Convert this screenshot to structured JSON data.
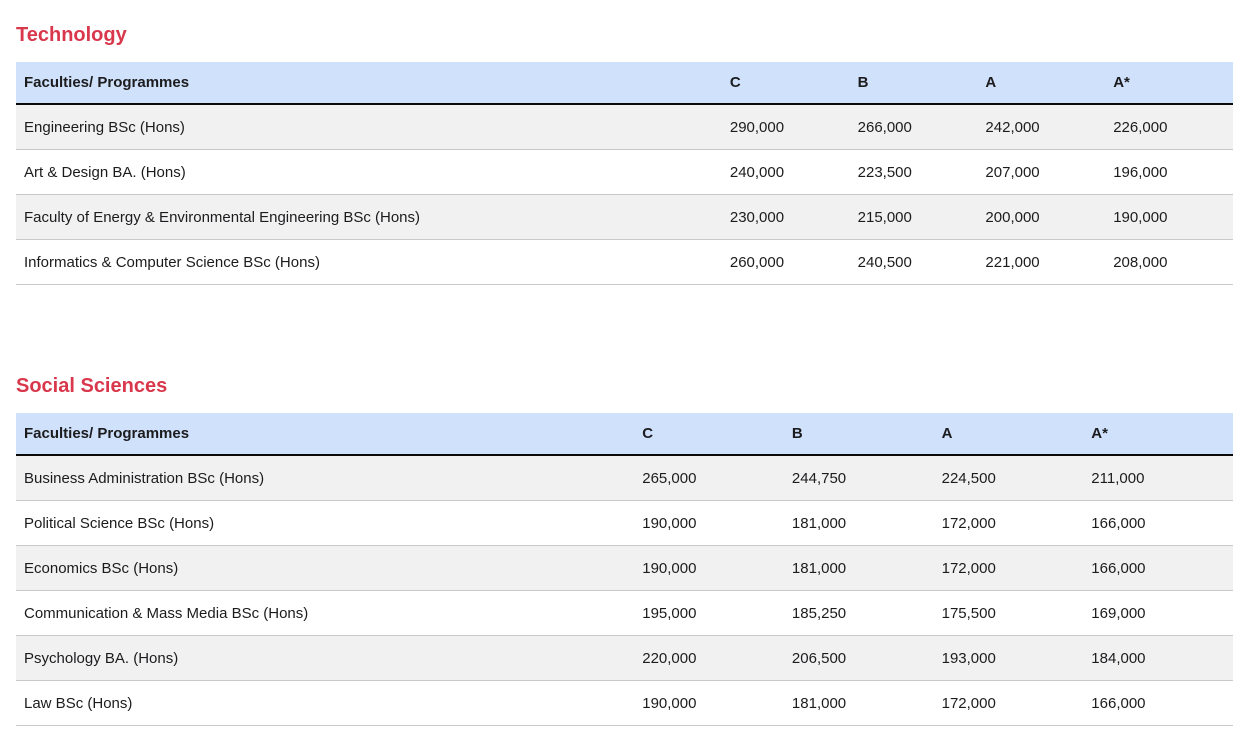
{
  "colors": {
    "section_heading": "#d9384c",
    "table_header_bg": "#cfe1fb",
    "row_alt_bg": "#f1f1f2",
    "header_border": "#0a0a0a",
    "row_border": "#c9c9cb",
    "text": "#1c1c1e"
  },
  "sections": [
    {
      "title": "Technology",
      "columns": [
        "Faculties/ Programmes",
        "C",
        "B",
        "A",
        "A*"
      ],
      "rows": [
        {
          "programme": "Engineering BSc (Hons)",
          "values": [
            "290,000",
            "266,000",
            "242,000",
            "226,000"
          ]
        },
        {
          "programme": "Art & Design BA. (Hons)",
          "values": [
            "240,000",
            "223,500",
            "207,000",
            "196,000"
          ]
        },
        {
          "programme": "Faculty of Energy & Environmental Engineering BSc (Hons)",
          "values": [
            "230,000",
            "215,000",
            "200,000",
            "190,000"
          ]
        },
        {
          "programme": "Informatics & Computer Science BSc (Hons)",
          "values": [
            "260,000",
            "240,500",
            "221,000",
            "208,000"
          ]
        }
      ]
    },
    {
      "title": "Social Sciences",
      "columns": [
        "Faculties/ Programmes",
        "C",
        "B",
        "A",
        "A*"
      ],
      "rows": [
        {
          "programme": "Business Administration BSc (Hons)",
          "values": [
            "265,000",
            "244,750",
            "224,500",
            "211,000"
          ]
        },
        {
          "programme": "Political Science BSc (Hons)",
          "values": [
            "190,000",
            "181,000",
            "172,000",
            "166,000"
          ]
        },
        {
          "programme": "Economics BSc (Hons)",
          "values": [
            "190,000",
            "181,000",
            "172,000",
            "166,000"
          ]
        },
        {
          "programme": "Communication & Mass Media BSc (Hons)",
          "values": [
            "195,000",
            "185,250",
            "175,500",
            "169,000"
          ]
        },
        {
          "programme": "Psychology BA. (Hons)",
          "values": [
            "220,000",
            "206,500",
            "193,000",
            "184,000"
          ]
        },
        {
          "programme": "Law BSc (Hons)",
          "values": [
            "190,000",
            "181,000",
            "172,000",
            "166,000"
          ]
        }
      ]
    }
  ]
}
